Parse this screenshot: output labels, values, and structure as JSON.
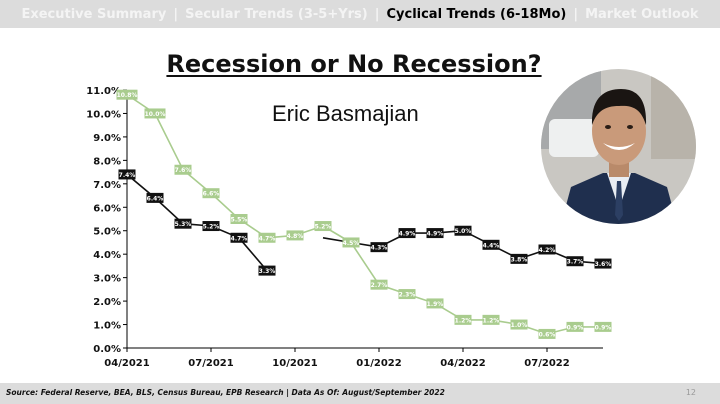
{
  "nav": {
    "items": [
      {
        "label": "Executive Summary",
        "active": false
      },
      {
        "label": "Secular Trends (3-5+Yrs)",
        "active": false
      },
      {
        "label": "Cyclical Trends (6-18Mo)",
        "active": true
      },
      {
        "label": "Market Outlook",
        "active": false
      }
    ],
    "separator": "|"
  },
  "slide": {
    "title": "Recession or No Recession?",
    "author": "Eric Basmajian",
    "page_number": "12"
  },
  "footer": {
    "source": "Source: Federal Reserve, BEA, BLS, Census Bureau, EPB Research   |   Data As Of: August/September 2022"
  },
  "chart_data": {
    "type": "line",
    "x": [
      "2021-04",
      "2021-05",
      "2021-06",
      "2021-07",
      "2021-08",
      "2021-09",
      "2021-10",
      "2021-11",
      "2021-12",
      "2022-01",
      "2022-02",
      "2022-03",
      "2022-04",
      "2022-05",
      "2022-06",
      "2022-07",
      "2022-08",
      "2022-09"
    ],
    "x_tick_labels": [
      {
        "x": "2021-04",
        "label": "04/2021"
      },
      {
        "x": "2021-07",
        "label": "07/2021"
      },
      {
        "x": "2021-10",
        "label": "10/2021"
      },
      {
        "x": "2022-01",
        "label": "01/2022"
      },
      {
        "x": "2022-04",
        "label": "04/2022"
      },
      {
        "x": "2022-07",
        "label": "07/2022"
      }
    ],
    "y_tick_labels": [
      "0.0%",
      "1.0%",
      "2.0%",
      "3.0%",
      "4.0%",
      "5.0%",
      "6.0%",
      "7.0%",
      "8.0%",
      "9.0%",
      "10.0%",
      "11.0%"
    ],
    "ylim": [
      0,
      11
    ],
    "grid": false,
    "series": [
      {
        "color": "#a9cc8e",
        "label_fill": "#a9cc8e",
        "label_text_color": "#ffffff",
        "values": [
          10.8,
          10.0,
          7.6,
          6.6,
          5.5,
          4.7,
          4.8,
          5.2,
          4.5,
          2.7,
          2.3,
          1.9,
          1.2,
          1.2,
          1.0,
          0.6,
          0.9,
          0.9
        ],
        "labels": [
          "10.8%",
          "10.0%",
          "7.6%",
          "6.6%",
          "5.5%",
          "4.7%",
          "4.8%",
          "5.2%",
          "4.5%",
          "2.7%",
          "2.3%",
          "1.9%",
          "1.2%",
          "1.2%",
          "1.0%",
          "0.6%",
          "0.9%",
          "0.9%"
        ]
      },
      {
        "color": "#111111",
        "label_fill": "#111111",
        "label_text_color": "#ffffff",
        "values": [
          7.4,
          6.4,
          5.3,
          5.2,
          4.7,
          3.3,
          null,
          4.7,
          4.5,
          4.3,
          4.9,
          4.9,
          5.0,
          4.4,
          3.8,
          4.2,
          3.7,
          3.6
        ],
        "labels": [
          "7.4%",
          "6.4%",
          "5.3%",
          "5.2%",
          "4.7%",
          "3.3%",
          "",
          "",
          "",
          "4.3%",
          "4.9%",
          "4.9%",
          "5.0%",
          "4.4%",
          "3.8%",
          "4.2%",
          "3.7%",
          "3.6%"
        ]
      }
    ]
  },
  "photo": {
    "description_icon": "portrait-photo",
    "colors": {
      "background": "#c9c7c2",
      "skin": "#c99a7a",
      "hair": "#1a1512",
      "suit": "#1f2f4e",
      "shirt": "#e9edf3"
    }
  }
}
